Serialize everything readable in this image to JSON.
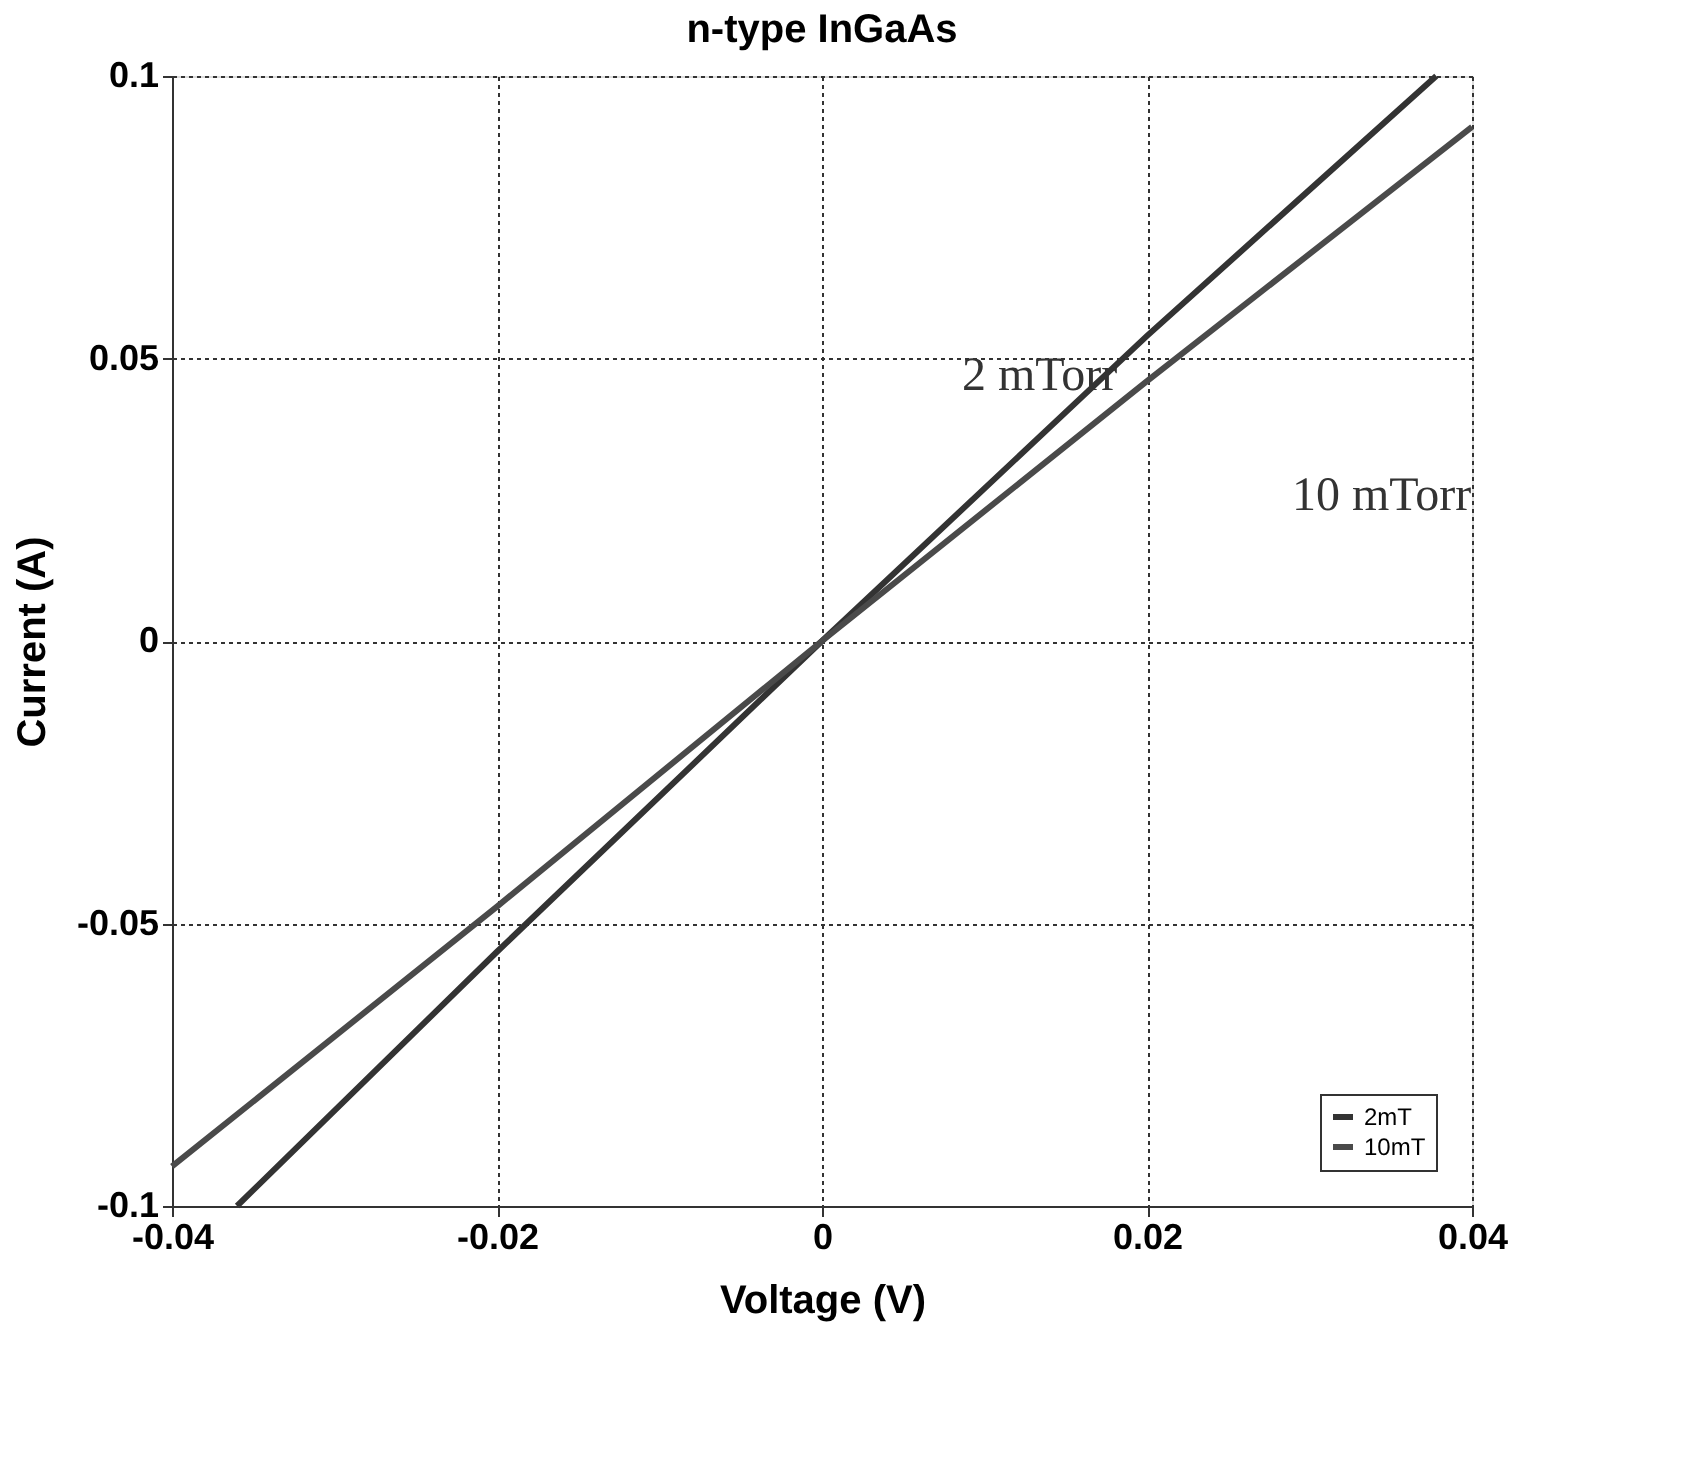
{
  "chart_data": {
    "type": "line",
    "title": "n-type InGaAs",
    "xlabel": "Voltage (V)",
    "ylabel": "Current (A)",
    "xlim": [
      -0.04,
      0.04
    ],
    "xticks": [
      -0.04,
      -0.02,
      0,
      0.02,
      0.04
    ],
    "ylim": [
      -0.1,
      0.1
    ],
    "yticks": [
      -0.1,
      -0.05,
      0,
      0.05,
      0.1
    ],
    "grid": true,
    "legend": "bottom right",
    "line_style": "solid",
    "series": [
      {
        "name": "2mT",
        "color": "#333333",
        "x": [
          -0.036,
          -0.02,
          0,
          0.02,
          0.0378
        ],
        "values": [
          -0.1,
          -0.055,
          0,
          0.054,
          0.1
        ]
      },
      {
        "name": "10mT",
        "color": "#4a4a4a",
        "x": [
          -0.04,
          -0.02,
          0,
          0.02,
          0.04
        ],
        "values": [
          -0.093,
          -0.047,
          0,
          0.046,
          0.091
        ]
      }
    ],
    "annotations": [
      "2 mTorr",
      "10 mTorr"
    ]
  }
}
